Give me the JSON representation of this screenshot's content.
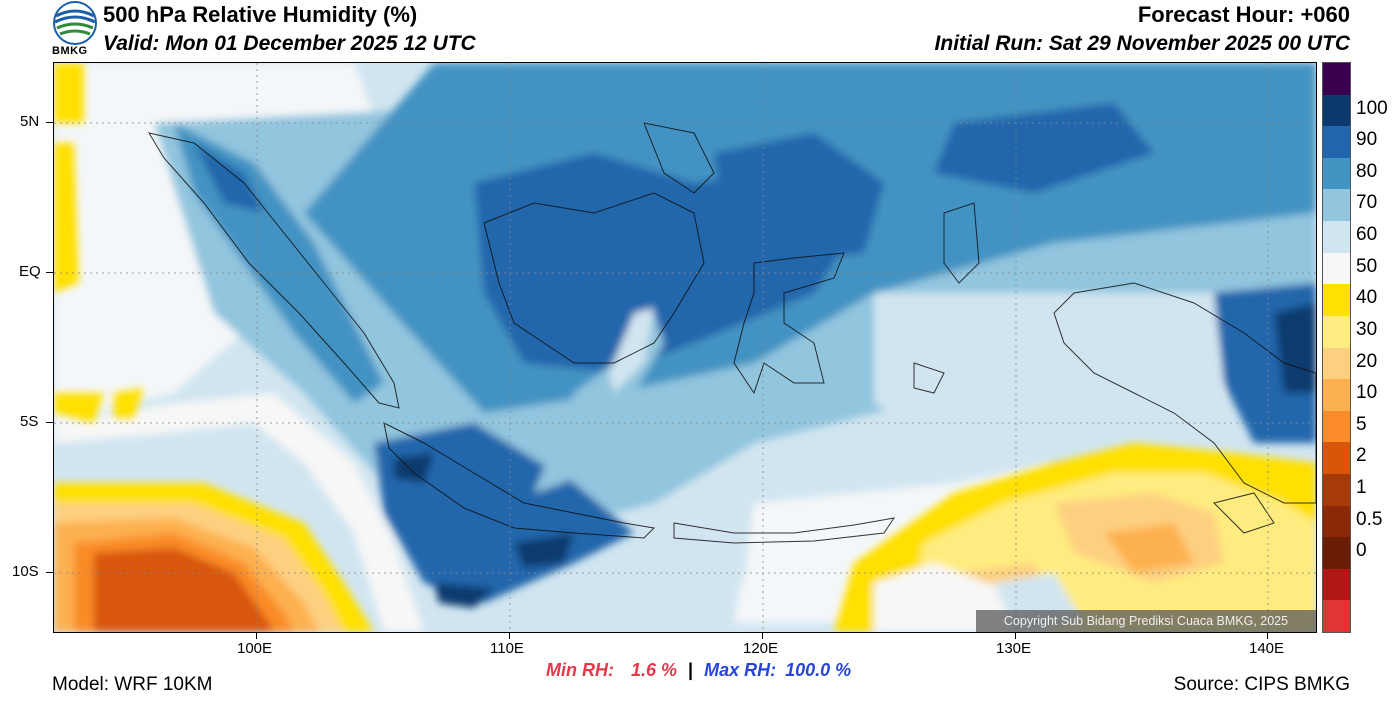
{
  "header": {
    "title": "500 hPa Relative Humidity (%)",
    "valid": "Valid: Mon 01 December 2025 12 UTC",
    "forecast_hour": "Forecast Hour: +060",
    "initial_run": "Initial Run: Sat 29 November 2025 00 UTC",
    "logo_text": "BMKG"
  },
  "map": {
    "lon_labels": [
      "100E",
      "110E",
      "120E",
      "130E",
      "140E"
    ],
    "lat_labels": [
      "5N",
      "EQ",
      "5S",
      "10S"
    ],
    "copyright": "Copyright Sub Bidang Prediksi Cuaca BMKG, 2025"
  },
  "colorbar": {
    "labels": [
      "100",
      "90",
      "80",
      "70",
      "60",
      "50",
      "40",
      "30",
      "20",
      "10",
      "5",
      "2",
      "1",
      "0.5",
      "0"
    ],
    "colors": [
      "#3a004f",
      "#0c3a6e",
      "#2166ac",
      "#4393c3",
      "#92c5de",
      "#d1e5f0",
      "#f7f7f7",
      "#ffe000",
      "#ffec80",
      "#fdd080",
      "#fdb050",
      "#fa8b28",
      "#d8560a",
      "#a63a0a",
      "#8a2a08",
      "#6a1e06",
      "#b01818",
      "#e03535"
    ]
  },
  "stats": {
    "min_label": "Min RH:",
    "min_value": "1.6 %",
    "separator": "|",
    "max_label": "Max RH:",
    "max_value": "100.0 %"
  },
  "footer": {
    "model": "Model: WRF 10KM",
    "source": "Source: CIPS BMKG"
  }
}
